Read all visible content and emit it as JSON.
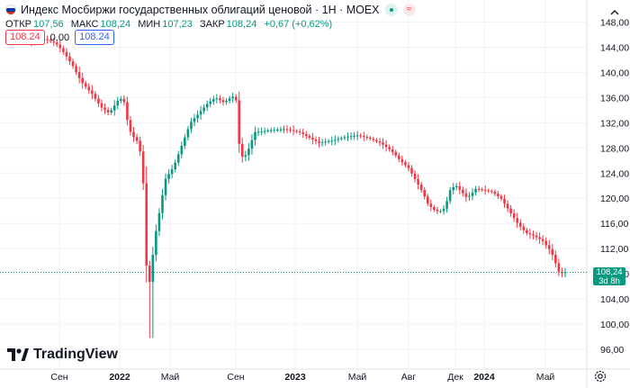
{
  "header": {
    "title": "Индекс Мосбиржи государственных облигаций ценовой · 1Н · MOEX",
    "flag_colors": [
      "#ffffff",
      "#0039a6",
      "#d52b1e"
    ]
  },
  "ohlc": {
    "open_label": "ОТКР",
    "open_value": "107,56",
    "high_label": "МАКС",
    "high_value": "108,24",
    "low_label": "МИН",
    "low_value": "107,23",
    "close_label": "ЗАКР",
    "close_value": "108,24",
    "change": "+0,67 (+0,62%)"
  },
  "pills": {
    "sell": "108.24",
    "spread": "0.00",
    "buy": "108.24"
  },
  "last_price": {
    "price": "108,24",
    "countdown": "3d 8h"
  },
  "branding": {
    "name": "TradingView"
  },
  "colors": {
    "up": "#089981",
    "down": "#f23645",
    "grid": "#f0f3fa",
    "text": "#131722",
    "accent": "#2962ff"
  },
  "chart_data": {
    "type": "candlestick",
    "y_ticks": [
      "148,00",
      "144,00",
      "140,00",
      "136,00",
      "132,00",
      "128,00",
      "124,00",
      "120,00",
      "116,00",
      "112,00",
      "108,00",
      "104,00",
      "100,00",
      "96,00"
    ],
    "y_tick_values": [
      148,
      144,
      140,
      136,
      132,
      128,
      124,
      120,
      116,
      112,
      108,
      104,
      100,
      96
    ],
    "x_ticks": [
      {
        "label": "Сен",
        "date": "2021-09"
      },
      {
        "label": "2022",
        "date": "2022-01"
      },
      {
        "label": "Май",
        "date": "2022-05"
      },
      {
        "label": "Сен",
        "date": "2022-09"
      },
      {
        "label": "2023",
        "date": "2023-01"
      },
      {
        "label": "Май",
        "date": "2023-05"
      },
      {
        "label": "Авг",
        "date": "2023-08"
      },
      {
        "label": "Дек",
        "date": "2023-12"
      },
      {
        "label": "2024",
        "date": "2024-01"
      },
      {
        "label": "Май",
        "date": "2024-05"
      }
    ],
    "ylim": [
      95,
      149.5
    ],
    "last_value": 108.24,
    "series_path": [
      {
        "t": 0.0,
        "v": 145.0
      },
      {
        "t": 0.03,
        "v": 145.2
      },
      {
        "t": 0.05,
        "v": 144.8
      },
      {
        "t": 0.07,
        "v": 145.3
      },
      {
        "t": 0.09,
        "v": 144.6
      },
      {
        "t": 0.105,
        "v": 143.0
      },
      {
        "t": 0.12,
        "v": 141.0
      },
      {
        "t": 0.135,
        "v": 138.5
      },
      {
        "t": 0.155,
        "v": 136.5
      },
      {
        "t": 0.17,
        "v": 134.5
      },
      {
        "t": 0.185,
        "v": 133.5
      },
      {
        "t": 0.2,
        "v": 135.5
      },
      {
        "t": 0.21,
        "v": 136.0
      },
      {
        "t": 0.22,
        "v": 131.0
      },
      {
        "t": 0.23,
        "v": 129.5
      },
      {
        "t": 0.238,
        "v": 128.8
      },
      {
        "t": 0.245,
        "v": 124.0
      },
      {
        "t": 0.252,
        "v": 108.0
      },
      {
        "t": 0.258,
        "v": 106.5
      },
      {
        "t": 0.265,
        "v": 113.0
      },
      {
        "t": 0.275,
        "v": 118.0
      },
      {
        "t": 0.285,
        "v": 123.0
      },
      {
        "t": 0.3,
        "v": 125.0
      },
      {
        "t": 0.315,
        "v": 128.5
      },
      {
        "t": 0.33,
        "v": 132.0
      },
      {
        "t": 0.345,
        "v": 133.5
      },
      {
        "t": 0.36,
        "v": 135.0
      },
      {
        "t": 0.375,
        "v": 136.0
      },
      {
        "t": 0.39,
        "v": 135.2
      },
      {
        "t": 0.405,
        "v": 136.2
      },
      {
        "t": 0.412,
        "v": 135.5
      },
      {
        "t": 0.418,
        "v": 127.5
      },
      {
        "t": 0.425,
        "v": 126.2
      },
      {
        "t": 0.435,
        "v": 128.0
      },
      {
        "t": 0.445,
        "v": 130.5
      },
      {
        "t": 0.47,
        "v": 130.8
      },
      {
        "t": 0.5,
        "v": 131.0
      },
      {
        "t": 0.525,
        "v": 130.5
      },
      {
        "t": 0.545,
        "v": 129.5
      },
      {
        "t": 0.56,
        "v": 128.8
      },
      {
        "t": 0.585,
        "v": 129.2
      },
      {
        "t": 0.61,
        "v": 129.8
      },
      {
        "t": 0.63,
        "v": 130.0
      },
      {
        "t": 0.65,
        "v": 129.5
      },
      {
        "t": 0.67,
        "v": 128.8
      },
      {
        "t": 0.69,
        "v": 127.5
      },
      {
        "t": 0.705,
        "v": 126.0
      },
      {
        "t": 0.72,
        "v": 124.8
      },
      {
        "t": 0.735,
        "v": 122.5
      },
      {
        "t": 0.745,
        "v": 121.0
      },
      {
        "t": 0.755,
        "v": 119.0
      },
      {
        "t": 0.765,
        "v": 118.2
      },
      {
        "t": 0.775,
        "v": 117.8
      },
      {
        "t": 0.785,
        "v": 118.5
      },
      {
        "t": 0.795,
        "v": 121.5
      },
      {
        "t": 0.805,
        "v": 122.0
      },
      {
        "t": 0.815,
        "v": 121.0
      },
      {
        "t": 0.825,
        "v": 120.0
      },
      {
        "t": 0.84,
        "v": 121.5
      },
      {
        "t": 0.855,
        "v": 121.3
      },
      {
        "t": 0.87,
        "v": 121.0
      },
      {
        "t": 0.885,
        "v": 120.0
      },
      {
        "t": 0.9,
        "v": 118.0
      },
      {
        "t": 0.915,
        "v": 116.0
      },
      {
        "t": 0.93,
        "v": 114.5
      },
      {
        "t": 0.945,
        "v": 114.0
      },
      {
        "t": 0.96,
        "v": 113.2
      },
      {
        "t": 0.975,
        "v": 111.5
      },
      {
        "t": 0.99,
        "v": 108.0
      },
      {
        "t": 1.0,
        "v": 108.24
      }
    ]
  }
}
